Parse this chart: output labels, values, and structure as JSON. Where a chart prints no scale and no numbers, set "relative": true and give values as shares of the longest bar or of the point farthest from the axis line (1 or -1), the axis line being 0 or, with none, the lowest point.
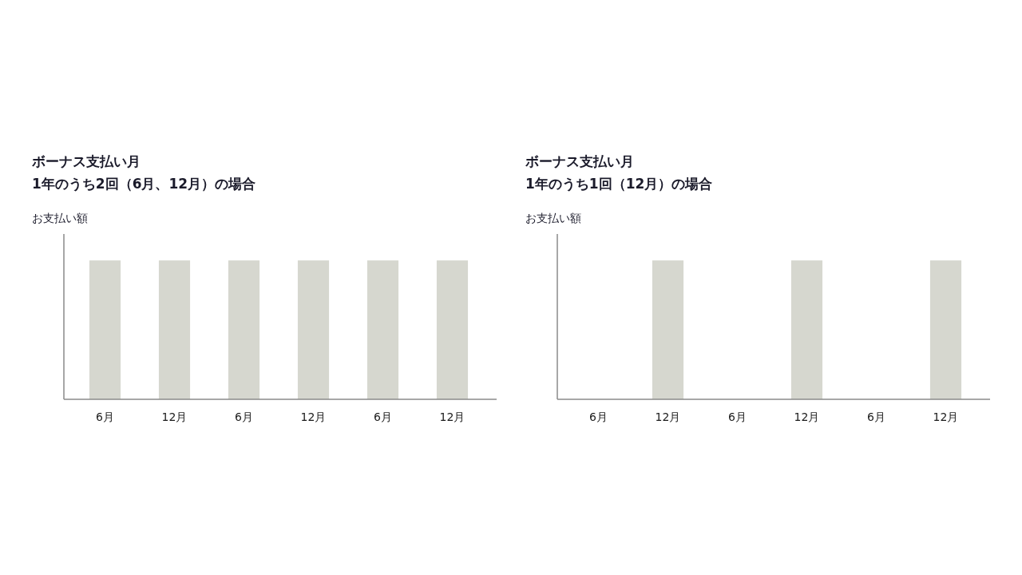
{
  "chart_data": [
    {
      "type": "bar",
      "title": "ボーナス支払い月",
      "subtitle": "1年のうち2回（6月、12月）の場合",
      "ylabel": "お支払い額",
      "relative": true,
      "categories": [
        "6月",
        "12月",
        "6月",
        "12月",
        "6月",
        "12月"
      ],
      "values": [
        1,
        1,
        1,
        1,
        1,
        1
      ],
      "color": "#d6d7cf"
    },
    {
      "type": "bar",
      "title": "ボーナス支払い月",
      "subtitle": "1年のうち1回（12月）の場合",
      "ylabel": "お支払い額",
      "relative": true,
      "categories": [
        "6月",
        "12月",
        "6月",
        "12月",
        "6月",
        "12月"
      ],
      "values": [
        0,
        1,
        0,
        1,
        0,
        1
      ],
      "color": "#d6d7cf"
    }
  ]
}
